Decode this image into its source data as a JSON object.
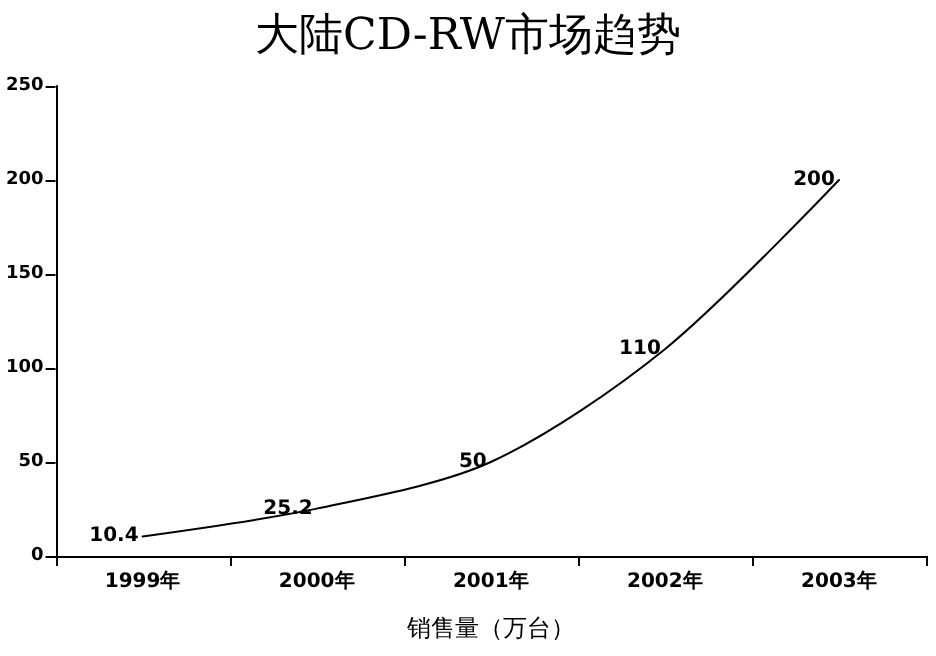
{
  "chart_data": {
    "type": "line",
    "title": "大陆CD-RW市场趋势",
    "xlabel": "销售量（万台）",
    "categories": [
      "1999年",
      "2000年",
      "2001年",
      "2002年",
      "2003年"
    ],
    "series": [
      {
        "color": "#000000",
        "values": [
          10.4,
          25.2,
          50,
          110,
          200
        ]
      }
    ],
    "ylim": [
      0,
      250
    ],
    "yticks": [
      0,
      50,
      100,
      150,
      200,
      250
    ],
    "grid": false,
    "marker": "none",
    "line_style": "solid",
    "data_labels": true
  }
}
